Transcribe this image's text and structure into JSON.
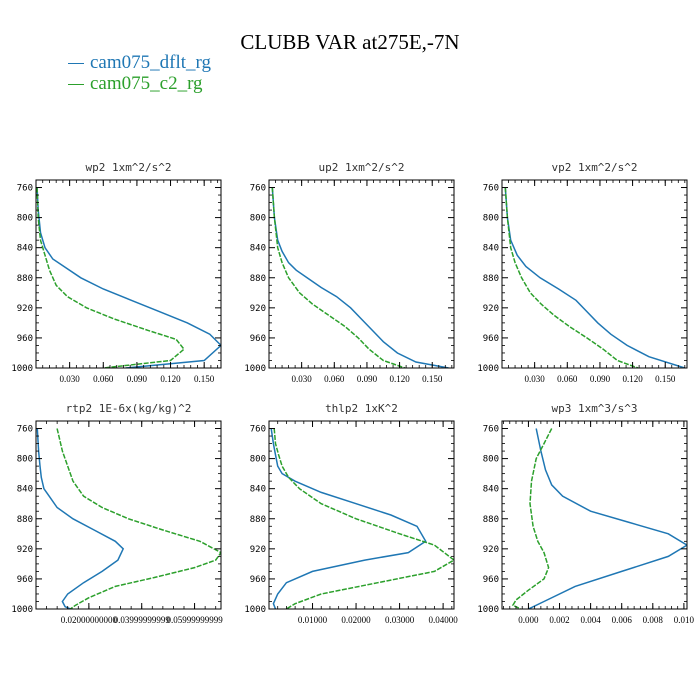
{
  "figure": {
    "title": "CLUBB VAR at275E,-7N",
    "legend": [
      {
        "name": "cam075_dflt_rg",
        "color": "#1f77b4"
      },
      {
        "name": "cam075_c2_rg",
        "color": "#2ca02c"
      }
    ]
  },
  "chart_data": [
    {
      "type": "line",
      "title": "wp2   1xm^2/s^2",
      "xlim": [
        0.0,
        0.165
      ],
      "ylim": [
        1000,
        750
      ],
      "xticks": [
        0.03,
        0.06,
        0.09,
        0.12,
        0.15
      ],
      "xtick_labels": [
        "0.030",
        "0.060",
        "0.090",
        "0.120",
        "0.150"
      ],
      "yticks": [
        760,
        800,
        840,
        880,
        920,
        960,
        1000
      ],
      "series": [
        {
          "name": "cam075_dflt_rg",
          "color": "#1f77b4",
          "dashed": false,
          "x": [
            0.001,
            0.002,
            0.004,
            0.008,
            0.015,
            0.025,
            0.04,
            0.06,
            0.085,
            0.11,
            0.135,
            0.155,
            0.165,
            0.15,
            0.08
          ],
          "y": [
            760,
            790,
            820,
            840,
            855,
            865,
            880,
            895,
            910,
            925,
            940,
            955,
            970,
            990,
            1000
          ]
        },
        {
          "name": "cam075_c2_rg",
          "color": "#2ca02c",
          "dashed": true,
          "x": [
            0.001,
            0.002,
            0.004,
            0.008,
            0.012,
            0.018,
            0.028,
            0.045,
            0.07,
            0.1,
            0.125,
            0.132,
            0.12,
            0.06
          ],
          "y": [
            760,
            800,
            830,
            850,
            870,
            890,
            905,
            920,
            935,
            950,
            962,
            975,
            990,
            1000
          ]
        }
      ]
    },
    {
      "type": "line",
      "title": "up2   1xm^2/s^2",
      "xlim": [
        0.0,
        0.17
      ],
      "ylim": [
        1000,
        750
      ],
      "xticks": [
        0.03,
        0.06,
        0.09,
        0.12,
        0.15
      ],
      "xtick_labels": [
        "0.030",
        "0.060",
        "0.090",
        "0.120",
        "0.150"
      ],
      "yticks": [
        760,
        800,
        840,
        880,
        920,
        960,
        1000
      ],
      "series": [
        {
          "name": "cam075_dflt_rg",
          "color": "#1f77b4",
          "dashed": false,
          "x": [
            0.003,
            0.005,
            0.008,
            0.012,
            0.018,
            0.025,
            0.035,
            0.048,
            0.062,
            0.075,
            0.085,
            0.095,
            0.105,
            0.118,
            0.135,
            0.165
          ],
          "y": [
            760,
            800,
            830,
            845,
            860,
            870,
            880,
            893,
            905,
            920,
            935,
            950,
            965,
            980,
            992,
            1000
          ]
        },
        {
          "name": "cam075_c2_rg",
          "color": "#2ca02c",
          "dashed": true,
          "x": [
            0.003,
            0.005,
            0.008,
            0.012,
            0.018,
            0.028,
            0.04,
            0.055,
            0.07,
            0.082,
            0.092,
            0.105,
            0.125
          ],
          "y": [
            760,
            800,
            840,
            860,
            880,
            900,
            915,
            930,
            945,
            960,
            975,
            990,
            1000
          ]
        }
      ]
    },
    {
      "type": "line",
      "title": "vp2   1xm^2/s^2",
      "xlim": [
        0.0,
        0.17
      ],
      "ylim": [
        1000,
        750
      ],
      "xticks": [
        0.03,
        0.06,
        0.09,
        0.12,
        0.15
      ],
      "xtick_labels": [
        "0.030",
        "0.060",
        "0.090",
        "0.120",
        "0.150"
      ],
      "yticks": [
        760,
        800,
        840,
        880,
        920,
        960,
        1000
      ],
      "series": [
        {
          "name": "cam075_dflt_rg",
          "color": "#1f77b4",
          "dashed": false,
          "x": [
            0.003,
            0.005,
            0.008,
            0.014,
            0.022,
            0.035,
            0.052,
            0.068,
            0.078,
            0.088,
            0.1,
            0.115,
            0.135,
            0.168
          ],
          "y": [
            760,
            800,
            830,
            850,
            865,
            880,
            895,
            910,
            925,
            940,
            955,
            970,
            985,
            1000
          ]
        },
        {
          "name": "cam075_c2_rg",
          "color": "#2ca02c",
          "dashed": true,
          "x": [
            0.003,
            0.005,
            0.008,
            0.012,
            0.018,
            0.026,
            0.036,
            0.048,
            0.062,
            0.078,
            0.093,
            0.106,
            0.125
          ],
          "y": [
            760,
            800,
            840,
            860,
            880,
            900,
            915,
            930,
            945,
            960,
            975,
            990,
            1000
          ]
        }
      ]
    },
    {
      "type": "line",
      "title": "rtp2   1E-6x(kg/kg)^2",
      "xlim": [
        0.0,
        0.07
      ],
      "ylim": [
        1000,
        750
      ],
      "xticks": [
        0.02,
        0.04,
        0.06
      ],
      "xtick_labels": [
        "0.02000000000",
        "0.03999999999",
        "0.05999999999"
      ],
      "yticks": [
        760,
        800,
        840,
        880,
        920,
        960,
        1000
      ],
      "series": [
        {
          "name": "cam075_dflt_rg",
          "color": "#1f77b4",
          "dashed": false,
          "x": [
            0.0005,
            0.001,
            0.0015,
            0.002,
            0.003,
            0.005,
            0.008,
            0.014,
            0.022,
            0.03,
            0.033,
            0.031,
            0.025,
            0.018,
            0.012,
            0.01,
            0.011,
            0.013
          ],
          "y": [
            760,
            790,
            810,
            825,
            840,
            850,
            865,
            880,
            895,
            910,
            920,
            935,
            950,
            965,
            980,
            990,
            997,
            1000
          ]
        },
        {
          "name": "cam075_c2_rg",
          "color": "#2ca02c",
          "dashed": true,
          "x": [
            0.008,
            0.01,
            0.012,
            0.014,
            0.018,
            0.025,
            0.035,
            0.048,
            0.062,
            0.07,
            0.068,
            0.06,
            0.045,
            0.03,
            0.02,
            0.015,
            0.013
          ],
          "y": [
            760,
            790,
            810,
            830,
            850,
            865,
            880,
            895,
            910,
            925,
            935,
            945,
            958,
            970,
            985,
            995,
            1000
          ]
        }
      ]
    },
    {
      "type": "line",
      "title": "thlp2   1xK^2",
      "xlim": [
        0.0,
        0.0425
      ],
      "ylim": [
        1000,
        750
      ],
      "xticks": [
        0.01,
        0.02,
        0.03,
        0.04
      ],
      "xtick_labels": [
        "0.01000",
        "0.02000",
        "0.03000",
        "0.04000"
      ],
      "yticks": [
        760,
        800,
        840,
        880,
        920,
        960,
        1000
      ],
      "series": [
        {
          "name": "cam075_dflt_rg",
          "color": "#1f77b4",
          "dashed": false,
          "x": [
            0.0005,
            0.001,
            0.0015,
            0.002,
            0.003,
            0.006,
            0.012,
            0.02,
            0.028,
            0.034,
            0.036,
            0.032,
            0.022,
            0.01,
            0.004,
            0.002,
            0.001,
            0.0015
          ],
          "y": [
            760,
            780,
            795,
            810,
            820,
            830,
            845,
            860,
            875,
            890,
            910,
            925,
            935,
            950,
            965,
            980,
            993,
            1000
          ]
        },
        {
          "name": "cam075_c2_rg",
          "color": "#2ca02c",
          "dashed": true,
          "x": [
            0.0012,
            0.0015,
            0.0022,
            0.003,
            0.0045,
            0.007,
            0.012,
            0.02,
            0.03,
            0.038,
            0.0425,
            0.038,
            0.025,
            0.012,
            0.006,
            0.004
          ],
          "y": [
            760,
            780,
            795,
            810,
            825,
            840,
            860,
            880,
            900,
            915,
            935,
            950,
            965,
            980,
            993,
            1000
          ]
        }
      ]
    },
    {
      "type": "line",
      "title": "wp3   1xm^3/s^3",
      "xlim": [
        -0.0017,
        0.0102
      ],
      "ylim": [
        1000,
        750
      ],
      "xticks": [
        0.0,
        0.002,
        0.004,
        0.006,
        0.008,
        0.01
      ],
      "xtick_labels": [
        "0.000",
        "0.002",
        "0.004",
        "0.006",
        "0.008",
        "0.010"
      ],
      "yticks": [
        760,
        800,
        840,
        880,
        920,
        960,
        1000
      ],
      "series": [
        {
          "name": "cam075_dflt_rg",
          "color": "#1f77b4",
          "dashed": false,
          "x": [
            0.0005,
            0.0008,
            0.0011,
            0.0015,
            0.0022,
            0.004,
            0.0065,
            0.009,
            0.0102,
            0.009,
            0.006,
            0.003,
            0.001,
            0.0
          ],
          "y": [
            760,
            790,
            815,
            835,
            850,
            870,
            885,
            900,
            915,
            930,
            950,
            970,
            990,
            1000
          ]
        },
        {
          "name": "cam075_c2_rg",
          "color": "#2ca02c",
          "dashed": true,
          "x": [
            0.0015,
            0.001,
            0.0005,
            0.0002,
            0.0001,
            0.0003,
            0.0006,
            0.001,
            0.0013,
            0.001,
            0.0,
            -0.0008,
            -0.001,
            -0.0005
          ],
          "y": [
            760,
            780,
            800,
            830,
            860,
            890,
            910,
            925,
            945,
            960,
            975,
            988,
            995,
            1000
          ]
        }
      ]
    }
  ]
}
